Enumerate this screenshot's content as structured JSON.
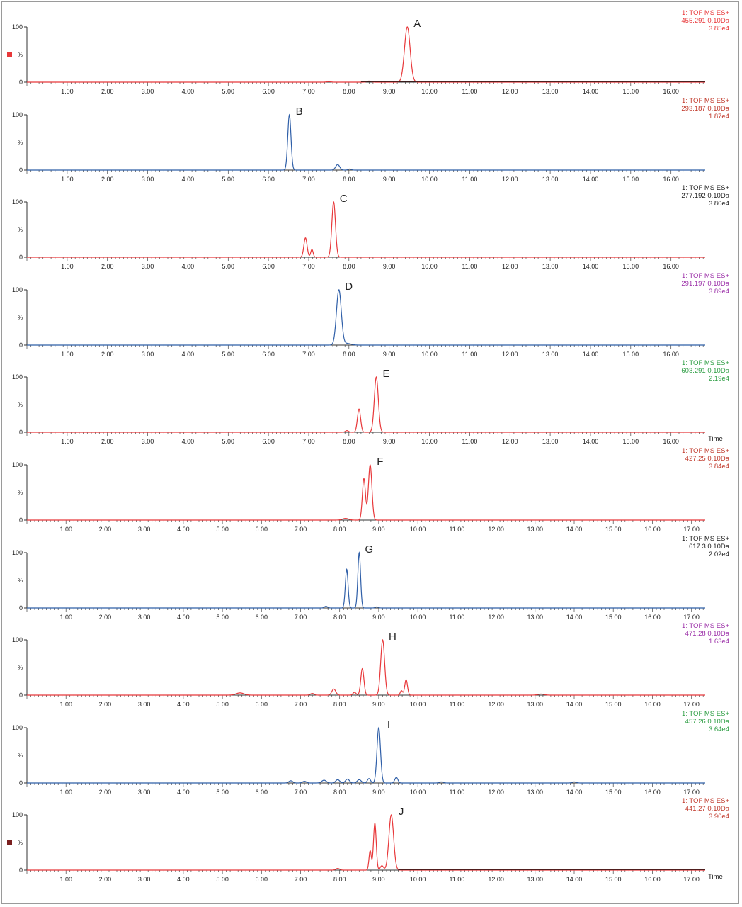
{
  "chart_data": [
    {
      "type": "line",
      "peak_label": "A",
      "color": "#e8383a",
      "header": [
        "1: TOF MS ES+",
        "455.291 0.10Da",
        "3.85e4"
      ],
      "header_color": "#e8383a",
      "marker_color": "#e8383a",
      "x_label": "",
      "xlim": [
        0.0,
        16.85
      ],
      "ylim": [
        0,
        100
      ],
      "y_ticks": [
        0,
        100
      ],
      "y_mid_label": "%",
      "x_ticks": [
        "1.00",
        "2.00",
        "3.00",
        "4.00",
        "5.00",
        "6.00",
        "7.00",
        "8.00",
        "9.00",
        "10.00",
        "11.00",
        "12.00",
        "13.00",
        "14.00",
        "15.00",
        "16.00"
      ],
      "peaks": [
        {
          "x": 9.45,
          "y": 100,
          "w": 0.07
        },
        {
          "x": 8.5,
          "y": 2,
          "w": 0.05
        },
        {
          "x": 7.5,
          "y": 1,
          "w": 0.05
        }
      ],
      "baseline_dark_from": 8.3
    },
    {
      "type": "line",
      "peak_label": "B",
      "color": "#2f5fa8",
      "header": [
        "1: TOF MS ES+",
        "293.187 0.10Da",
        "1.87e4"
      ],
      "header_color": "#c0392b",
      "marker_color": "",
      "x_label": "",
      "xlim": [
        0.0,
        16.85
      ],
      "ylim": [
        0,
        100
      ],
      "y_ticks": [
        0,
        100
      ],
      "y_mid_label": "%",
      "x_ticks": [
        "1.00",
        "2.00",
        "3.00",
        "4.00",
        "5.00",
        "6.00",
        "7.00",
        "8.00",
        "9.00",
        "10.00",
        "11.00",
        "12.00",
        "13.00",
        "14.00",
        "15.00",
        "16.00"
      ],
      "peaks": [
        {
          "x": 6.52,
          "y": 100,
          "w": 0.04
        },
        {
          "x": 7.72,
          "y": 10,
          "w": 0.05
        },
        {
          "x": 8.02,
          "y": 2,
          "w": 0.04
        }
      ],
      "baseline_dark_from": 99
    },
    {
      "type": "line",
      "peak_label": "C",
      "color": "#e8383a",
      "header": [
        "1: TOF MS ES+",
        "277.192 0.10Da",
        "3.80e4"
      ],
      "header_color": "#222222",
      "marker_color": "",
      "x_label": "",
      "xlim": [
        0.0,
        16.85
      ],
      "ylim": [
        0,
        100
      ],
      "y_ticks": [
        0,
        100
      ],
      "y_mid_label": "%",
      "x_ticks": [
        "1.00",
        "2.00",
        "3.00",
        "4.00",
        "5.00",
        "6.00",
        "7.00",
        "8.00",
        "9.00",
        "10.00",
        "11.00",
        "12.00",
        "13.00",
        "14.00",
        "15.00",
        "16.00"
      ],
      "peaks": [
        {
          "x": 6.92,
          "y": 35,
          "w": 0.04
        },
        {
          "x": 7.08,
          "y": 14,
          "w": 0.03
        },
        {
          "x": 7.62,
          "y": 100,
          "w": 0.045
        }
      ],
      "baseline_dark_from": 99
    },
    {
      "type": "line",
      "peak_label": "D",
      "color": "#2f5fa8",
      "header": [
        "1: TOF MS ES+",
        "291.197 0.10Da",
        "3.89e4"
      ],
      "header_color": "#9b2fa8",
      "marker_color": "",
      "x_label": "",
      "xlim": [
        0.0,
        16.85
      ],
      "ylim": [
        0,
        100
      ],
      "y_ticks": [
        0,
        100
      ],
      "y_mid_label": "%",
      "x_ticks": [
        "1.00",
        "2.00",
        "3.00",
        "4.00",
        "5.00",
        "6.00",
        "7.00",
        "8.00",
        "9.00",
        "10.00",
        "11.00",
        "12.00",
        "13.00",
        "14.00",
        "15.00",
        "16.00"
      ],
      "peaks": [
        {
          "x": 7.75,
          "y": 100,
          "w": 0.06
        },
        {
          "x": 7.95,
          "y": 3,
          "w": 0.1
        }
      ],
      "baseline_dark_from": 99
    },
    {
      "type": "line",
      "peak_label": "E",
      "color": "#e8383a",
      "header": [
        "1: TOF MS ES+",
        "603.291 0.10Da",
        "2.19e4"
      ],
      "header_color": "#2e9e44",
      "marker_color": "",
      "x_label": "Time",
      "xlim": [
        0.0,
        16.85
      ],
      "ylim": [
        0,
        100
      ],
      "y_ticks": [
        0,
        100
      ],
      "y_mid_label": "%",
      "x_ticks": [
        "1.00",
        "2.00",
        "3.00",
        "4.00",
        "5.00",
        "6.00",
        "7.00",
        "8.00",
        "9.00",
        "10.00",
        "11.00",
        "12.00",
        "13.00",
        "14.00",
        "15.00",
        "16.00"
      ],
      "peaks": [
        {
          "x": 8.25,
          "y": 42,
          "w": 0.04
        },
        {
          "x": 8.68,
          "y": 100,
          "w": 0.05
        },
        {
          "x": 7.95,
          "y": 3,
          "w": 0.04
        }
      ],
      "baseline_dark_from": 99
    },
    {
      "type": "line",
      "peak_label": "F",
      "color": "#e8383a",
      "header": [
        "1: TOF MS ES+",
        "427.25 0.10Da",
        "3.84e4"
      ],
      "header_color": "#c0392b",
      "marker_color": "",
      "x_label": "",
      "xlim": [
        0.0,
        17.35
      ],
      "ylim": [
        0,
        100
      ],
      "y_ticks": [
        0,
        100
      ],
      "y_mid_label": "%",
      "x_ticks": [
        "1.00",
        "2.00",
        "3.00",
        "4.00",
        "5.00",
        "6.00",
        "7.00",
        "8.00",
        "9.00",
        "10.00",
        "11.00",
        "12.00",
        "13.00",
        "14.00",
        "15.00",
        "16.00",
        "17.00"
      ],
      "peaks": [
        {
          "x": 8.62,
          "y": 75,
          "w": 0.04
        },
        {
          "x": 8.78,
          "y": 100,
          "w": 0.045
        },
        {
          "x": 8.15,
          "y": 3,
          "w": 0.08
        }
      ],
      "baseline_dark_from": 99
    },
    {
      "type": "line",
      "peak_label": "G",
      "color": "#2f5fa8",
      "header": [
        "1: TOF MS ES+",
        "617.3 0.10Da",
        "2.02e4"
      ],
      "header_color": "#222222",
      "marker_color": "",
      "x_label": "",
      "xlim": [
        0.0,
        17.35
      ],
      "ylim": [
        0,
        100
      ],
      "y_ticks": [
        0,
        100
      ],
      "y_mid_label": "%",
      "x_ticks": [
        "1.00",
        "2.00",
        "3.00",
        "4.00",
        "5.00",
        "6.00",
        "7.00",
        "8.00",
        "9.00",
        "10.00",
        "11.00",
        "12.00",
        "13.00",
        "14.00",
        "15.00",
        "16.00",
        "17.00"
      ],
      "peaks": [
        {
          "x": 8.18,
          "y": 70,
          "w": 0.035
        },
        {
          "x": 8.5,
          "y": 100,
          "w": 0.035
        },
        {
          "x": 7.65,
          "y": 3,
          "w": 0.04
        },
        {
          "x": 8.95,
          "y": 2,
          "w": 0.04
        }
      ],
      "baseline_dark_from": 99
    },
    {
      "type": "line",
      "peak_label": "H",
      "color": "#e8383a",
      "header": [
        "1: TOF MS ES+",
        "471.28 0.10Da",
        "1.63e4"
      ],
      "header_color": "#9b2fa8",
      "marker_color": "",
      "x_label": "",
      "xlim": [
        0.0,
        17.35
      ],
      "ylim": [
        0,
        100
      ],
      "y_ticks": [
        0,
        100
      ],
      "y_mid_label": "%",
      "x_ticks": [
        "1.00",
        "2.00",
        "3.00",
        "4.00",
        "5.00",
        "6.00",
        "7.00",
        "8.00",
        "9.00",
        "10.00",
        "11.00",
        "12.00",
        "13.00",
        "14.00",
        "15.00",
        "16.00",
        "17.00"
      ],
      "peaks": [
        {
          "x": 5.45,
          "y": 4,
          "w": 0.1
        },
        {
          "x": 7.3,
          "y": 3,
          "w": 0.05
        },
        {
          "x": 7.85,
          "y": 11,
          "w": 0.05
        },
        {
          "x": 8.38,
          "y": 5,
          "w": 0.04
        },
        {
          "x": 8.58,
          "y": 48,
          "w": 0.04
        },
        {
          "x": 9.1,
          "y": 100,
          "w": 0.05
        },
        {
          "x": 9.58,
          "y": 8,
          "w": 0.03
        },
        {
          "x": 9.7,
          "y": 28,
          "w": 0.035
        },
        {
          "x": 13.15,
          "y": 2,
          "w": 0.08
        }
      ],
      "baseline_dark_from": 99
    },
    {
      "type": "line",
      "peak_label": "I",
      "color": "#2f5fa8",
      "header": [
        "1: TOF MS ES+",
        "457.26 0.10Da",
        "3.64e4"
      ],
      "header_color": "#2e9e44",
      "marker_color": "",
      "x_label": "",
      "xlim": [
        0.0,
        17.35
      ],
      "ylim": [
        0,
        100
      ],
      "y_ticks": [
        0,
        100
      ],
      "y_mid_label": "%",
      "x_ticks": [
        "1.00",
        "2.00",
        "3.00",
        "4.00",
        "5.00",
        "6.00",
        "7.00",
        "8.00",
        "9.00",
        "10.00",
        "11.00",
        "12.00",
        "13.00",
        "14.00",
        "15.00",
        "16.00",
        "17.00"
      ],
      "peaks": [
        {
          "x": 9.0,
          "y": 100,
          "w": 0.045
        },
        {
          "x": 6.75,
          "y": 4,
          "w": 0.05
        },
        {
          "x": 7.1,
          "y": 3,
          "w": 0.05
        },
        {
          "x": 7.6,
          "y": 5,
          "w": 0.06
        },
        {
          "x": 7.95,
          "y": 6,
          "w": 0.05
        },
        {
          "x": 8.2,
          "y": 7,
          "w": 0.05
        },
        {
          "x": 8.5,
          "y": 6,
          "w": 0.05
        },
        {
          "x": 8.75,
          "y": 8,
          "w": 0.04
        },
        {
          "x": 9.45,
          "y": 10,
          "w": 0.04
        },
        {
          "x": 10.6,
          "y": 2,
          "w": 0.05
        },
        {
          "x": 14.0,
          "y": 2,
          "w": 0.05
        }
      ],
      "baseline_dark_from": 99
    },
    {
      "type": "line",
      "peak_label": "J",
      "color": "#e8383a",
      "header": [
        "1: TOF MS ES+",
        "441.27 0.10Da",
        "3.90e4"
      ],
      "header_color": "#c0392b",
      "marker_color": "#7a1f1f",
      "x_label": "Time",
      "xlim": [
        0.0,
        17.35
      ],
      "ylim": [
        0,
        100
      ],
      "y_ticks": [
        0,
        100
      ],
      "y_mid_label": "%",
      "x_ticks": [
        "1.00",
        "2.00",
        "3.00",
        "4.00",
        "5.00",
        "6.00",
        "7.00",
        "8.00",
        "9.00",
        "10.00",
        "11.00",
        "12.00",
        "13.00",
        "14.00",
        "15.00",
        "16.00",
        "17.00"
      ],
      "peaks": [
        {
          "x": 8.78,
          "y": 35,
          "w": 0.03
        },
        {
          "x": 8.9,
          "y": 85,
          "w": 0.035
        },
        {
          "x": 9.08,
          "y": 8,
          "w": 0.04
        },
        {
          "x": 9.32,
          "y": 100,
          "w": 0.06
        },
        {
          "x": 7.95,
          "y": 3,
          "w": 0.05
        }
      ],
      "baseline_dark_from": 9.5
    }
  ]
}
